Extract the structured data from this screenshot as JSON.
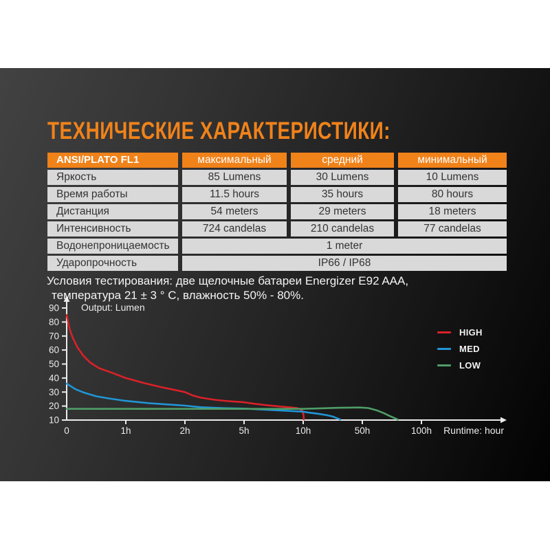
{
  "title": "ТЕХНИЧЕСКИЕ ХАРАКТЕРИСТИКИ:",
  "colors": {
    "accent_orange": "#f0821a",
    "table_cell_gray": "#d9d9d9",
    "table_text": "#333333",
    "panel_text": "#f4f4f4"
  },
  "table": {
    "headers": [
      "ANSI/PLATO FL1",
      "максимальный",
      "средний",
      "минимальный"
    ],
    "rows": [
      {
        "label": "Яркость",
        "values": [
          "85 Lumens",
          "30 Lumens",
          "10 Lumens"
        ]
      },
      {
        "label": "Время работы",
        "values": [
          "11.5 hours",
          "35 hours",
          "80 hours"
        ]
      },
      {
        "label": "Дистанция",
        "values": [
          "54 meters",
          "29 meters",
          "18 meters"
        ]
      },
      {
        "label": "Интенсивность",
        "values": [
          "724 candelas",
          "210 candelas",
          "77 candelas"
        ]
      },
      {
        "label": "Водонепроницаемость",
        "span_value": "1 meter"
      },
      {
        "label": "Ударопрочность",
        "span_value": "IP66 / IP68"
      }
    ]
  },
  "note": {
    "line1": "Условия тестирования: две щелочные батареи Energizer E92 AAA,",
    "line2": "температура 21 ± 3 ° C, влажность 50% - 80%."
  },
  "chart_data": {
    "type": "line",
    "ylabel": "Output: Lumen",
    "xlabel": "Runtime: hour",
    "grid": false,
    "legend_position": "right",
    "x_axis": {
      "scale": "segmented",
      "tick_hours": [
        0,
        1,
        2,
        5,
        10,
        50,
        100
      ],
      "tick_labels": [
        "0",
        "1h",
        "2h",
        "5h",
        "10h",
        "50h",
        "100h"
      ]
    },
    "y_axis": {
      "ticks": [
        10,
        20,
        30,
        40,
        50,
        60,
        70,
        80,
        90
      ],
      "range": [
        10,
        90
      ]
    },
    "series": [
      {
        "name": "HIGH",
        "color": "#da2128",
        "points": [
          [
            0,
            85
          ],
          [
            0.05,
            75
          ],
          [
            0.1,
            69
          ],
          [
            0.18,
            62
          ],
          [
            0.28,
            56
          ],
          [
            0.4,
            51
          ],
          [
            0.55,
            47
          ],
          [
            0.75,
            44
          ],
          [
            1,
            40
          ],
          [
            1.3,
            36.5
          ],
          [
            1.6,
            33.5
          ],
          [
            2,
            30
          ],
          [
            2.4,
            27.5
          ],
          [
            2.8,
            26
          ],
          [
            3.5,
            24.5
          ],
          [
            4.2,
            23.5
          ],
          [
            5,
            22.7
          ],
          [
            6,
            21.5
          ],
          [
            7,
            20.5
          ],
          [
            8,
            19.7
          ],
          [
            9,
            19
          ],
          [
            9.5,
            18.5
          ],
          [
            9.9,
            17
          ],
          [
            10.2,
            14
          ],
          [
            10.4,
            10.4
          ]
        ]
      },
      {
        "name": "MED",
        "color": "#2196d6",
        "points": [
          [
            0,
            36
          ],
          [
            0.15,
            32
          ],
          [
            0.3,
            29.5
          ],
          [
            0.5,
            27
          ],
          [
            0.7,
            25.5
          ],
          [
            1,
            23.7
          ],
          [
            1.4,
            22
          ],
          [
            2,
            20.3
          ],
          [
            2.8,
            19.2
          ],
          [
            4,
            18.5
          ],
          [
            5,
            18.2
          ],
          [
            7,
            17.3
          ],
          [
            10,
            16
          ],
          [
            14,
            15.3
          ],
          [
            20,
            14.5
          ],
          [
            26,
            13.5
          ],
          [
            30,
            12.5
          ],
          [
            33,
            11.3
          ],
          [
            35,
            10.4
          ]
        ]
      },
      {
        "name": "LOW",
        "color": "#4f9e68",
        "points": [
          [
            0,
            18
          ],
          [
            5,
            18
          ],
          [
            10,
            18
          ],
          [
            20,
            18.3
          ],
          [
            35,
            18.8
          ],
          [
            48,
            19
          ],
          [
            55,
            18.6
          ],
          [
            62,
            17
          ],
          [
            68,
            15
          ],
          [
            73,
            13
          ],
          [
            77,
            11.5
          ],
          [
            80,
            10.4
          ]
        ]
      }
    ]
  }
}
